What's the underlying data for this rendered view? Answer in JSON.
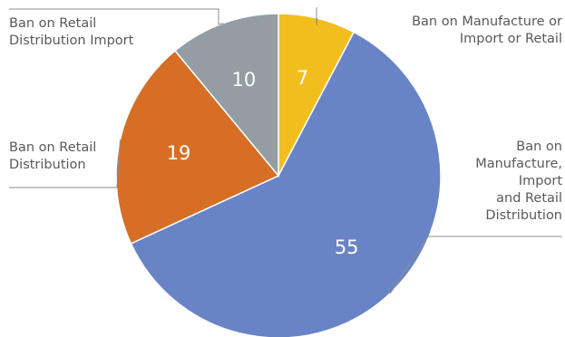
{
  "chart_data": {
    "type": "pie",
    "title": "",
    "start_angle_deg": 0,
    "direction": "clockwise",
    "slices": [
      {
        "label": "Ban on Manufacture or Import or Retail",
        "value": 7,
        "color": "#F2BE1E"
      },
      {
        "label": "Ban on Manufacture, Import and Retail Distribution",
        "value": 55,
        "color": "#6884C6"
      },
      {
        "label": "Ban on Retail Distribution",
        "value": 19,
        "color": "#D66E26"
      },
      {
        "label": "Ban on Retail Distribution Import",
        "value": 10,
        "color": "#939DA3"
      }
    ],
    "label_lines": [
      [
        "Ban on Manufacture or",
        "Import or Retail"
      ],
      [
        "Ban on",
        "Manufacture,",
        "Import",
        "and Retail",
        "Distribution"
      ],
      [
        "Ban on Retail",
        "Distribution"
      ],
      [
        "Ban on Retail",
        "Distribution Import"
      ]
    ],
    "value_labels": [
      "7",
      "55",
      "19",
      "10"
    ],
    "legend": "none"
  }
}
